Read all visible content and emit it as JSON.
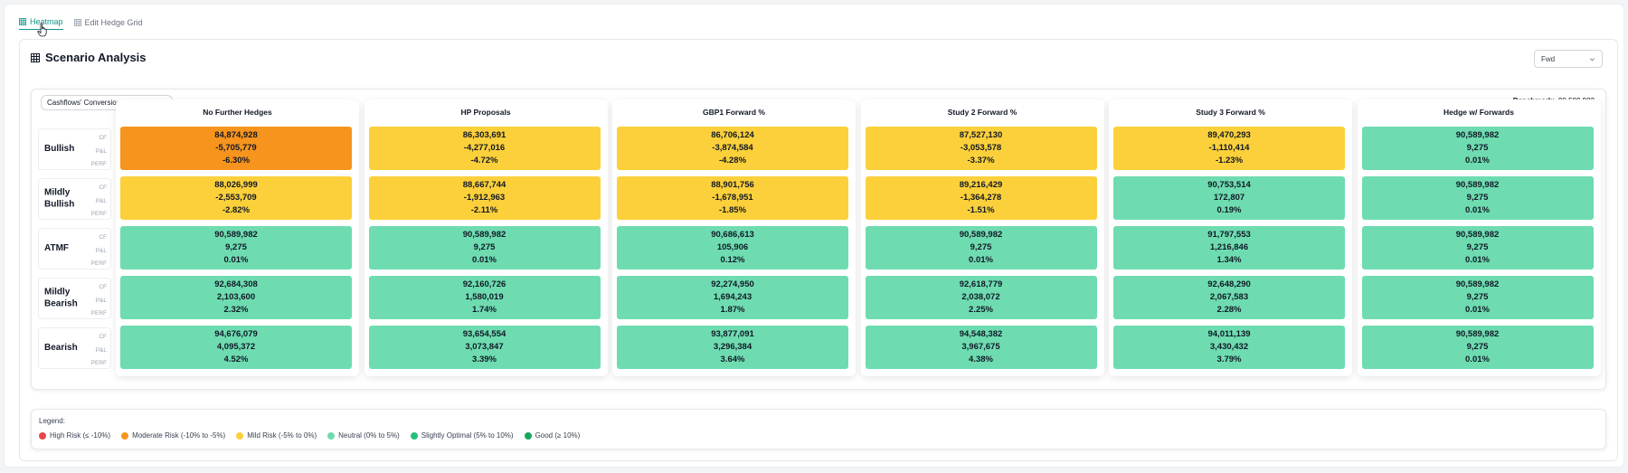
{
  "tabs": [
    {
      "label": "Heatmap",
      "icon": "grid-icon",
      "active": true
    },
    {
      "label": "Edit Hedge Grid",
      "icon": "grid-icon",
      "active": false
    }
  ],
  "panel": {
    "title": "Scenario Analysis",
    "select_value": "Fwd"
  },
  "card": {
    "pill_label": "Cashflows' Conversion & PNL Impact",
    "benchmark_label": "Benchmark:",
    "benchmark_value": "90,589,982"
  },
  "metrics": [
    "CF",
    "P&L",
    "PERF"
  ],
  "rows": [
    {
      "name": "Bullish"
    },
    {
      "name": "Mildly Bullish"
    },
    {
      "name": "ATMF"
    },
    {
      "name": "Mildly Bearish"
    },
    {
      "name": "Bearish"
    }
  ],
  "colors": {
    "high_risk": "#e5484d",
    "moderate_risk": "#f7941d",
    "mild_risk": "#fcd03a",
    "neutral": "#6edcb0",
    "slightly_optimal": "#22c07a",
    "good": "#14a85e"
  },
  "columns": [
    {
      "header": "No Further Hedges",
      "cells": [
        {
          "cf": "84,874,928",
          "pnl": "-5,705,779",
          "perf": "-6.30%",
          "level": "moderate_risk"
        },
        {
          "cf": "88,026,999",
          "pnl": "-2,553,709",
          "perf": "-2.82%",
          "level": "mild_risk"
        },
        {
          "cf": "90,589,982",
          "pnl": "9,275",
          "perf": "0.01%",
          "level": "neutral"
        },
        {
          "cf": "92,684,308",
          "pnl": "2,103,600",
          "perf": "2.32%",
          "level": "neutral"
        },
        {
          "cf": "94,676,079",
          "pnl": "4,095,372",
          "perf": "4.52%",
          "level": "neutral"
        }
      ]
    },
    {
      "header": "HP Proposals",
      "cells": [
        {
          "cf": "86,303,691",
          "pnl": "-4,277,016",
          "perf": "-4.72%",
          "level": "mild_risk"
        },
        {
          "cf": "88,667,744",
          "pnl": "-1,912,963",
          "perf": "-2.11%",
          "level": "mild_risk"
        },
        {
          "cf": "90,589,982",
          "pnl": "9,275",
          "perf": "0.01%",
          "level": "neutral"
        },
        {
          "cf": "92,160,726",
          "pnl": "1,580,019",
          "perf": "1.74%",
          "level": "neutral"
        },
        {
          "cf": "93,654,554",
          "pnl": "3,073,847",
          "perf": "3.39%",
          "level": "neutral"
        }
      ]
    },
    {
      "header": "GBP1 Forward %",
      "cells": [
        {
          "cf": "86,706,124",
          "pnl": "-3,874,584",
          "perf": "-4.28%",
          "level": "mild_risk"
        },
        {
          "cf": "88,901,756",
          "pnl": "-1,678,951",
          "perf": "-1.85%",
          "level": "mild_risk"
        },
        {
          "cf": "90,686,613",
          "pnl": "105,906",
          "perf": "0.12%",
          "level": "neutral"
        },
        {
          "cf": "92,274,950",
          "pnl": "1,694,243",
          "perf": "1.87%",
          "level": "neutral"
        },
        {
          "cf": "93,877,091",
          "pnl": "3,296,384",
          "perf": "3.64%",
          "level": "neutral"
        }
      ]
    },
    {
      "header": "Study 2 Forward %",
      "cells": [
        {
          "cf": "87,527,130",
          "pnl": "-3,053,578",
          "perf": "-3.37%",
          "level": "mild_risk"
        },
        {
          "cf": "89,216,429",
          "pnl": "-1,364,278",
          "perf": "-1.51%",
          "level": "mild_risk"
        },
        {
          "cf": "90,589,982",
          "pnl": "9,275",
          "perf": "0.01%",
          "level": "neutral"
        },
        {
          "cf": "92,618,779",
          "pnl": "2,038,072",
          "perf": "2.25%",
          "level": "neutral"
        },
        {
          "cf": "94,548,382",
          "pnl": "3,967,675",
          "perf": "4.38%",
          "level": "neutral"
        }
      ]
    },
    {
      "header": "Study 3 Forward %",
      "cells": [
        {
          "cf": "89,470,293",
          "pnl": "-1,110,414",
          "perf": "-1.23%",
          "level": "mild_risk"
        },
        {
          "cf": "90,753,514",
          "pnl": "172,807",
          "perf": "0.19%",
          "level": "neutral"
        },
        {
          "cf": "91,797,553",
          "pnl": "1,216,846",
          "perf": "1.34%",
          "level": "neutral"
        },
        {
          "cf": "92,648,290",
          "pnl": "2,067,583",
          "perf": "2.28%",
          "level": "neutral"
        },
        {
          "cf": "94,011,139",
          "pnl": "3,430,432",
          "perf": "3.79%",
          "level": "neutral"
        }
      ]
    },
    {
      "header": "Hedge w/ Forwards",
      "cells": [
        {
          "cf": "90,589,982",
          "pnl": "9,275",
          "perf": "0.01%",
          "level": "neutral"
        },
        {
          "cf": "90,589,982",
          "pnl": "9,275",
          "perf": "0.01%",
          "level": "neutral"
        },
        {
          "cf": "90,589,982",
          "pnl": "9,275",
          "perf": "0.01%",
          "level": "neutral"
        },
        {
          "cf": "90,589,982",
          "pnl": "9,275",
          "perf": "0.01%",
          "level": "neutral"
        },
        {
          "cf": "90,589,982",
          "pnl": "9,275",
          "perf": "0.01%",
          "level": "neutral"
        }
      ]
    }
  ],
  "legend": {
    "title": "Legend:",
    "items": [
      {
        "label": "High Risk (≤ -10%)",
        "level": "high_risk"
      },
      {
        "label": "Moderate Risk (-10% to -5%)",
        "level": "moderate_risk"
      },
      {
        "label": "Mild Risk (-5% to 0%)",
        "level": "mild_risk"
      },
      {
        "label": "Neutral (0% to 5%)",
        "level": "neutral"
      },
      {
        "label": "Slightly Optimal (5% to 10%)",
        "level": "slightly_optimal"
      },
      {
        "label": "Good (≥ 10%)",
        "level": "good"
      }
    ]
  }
}
